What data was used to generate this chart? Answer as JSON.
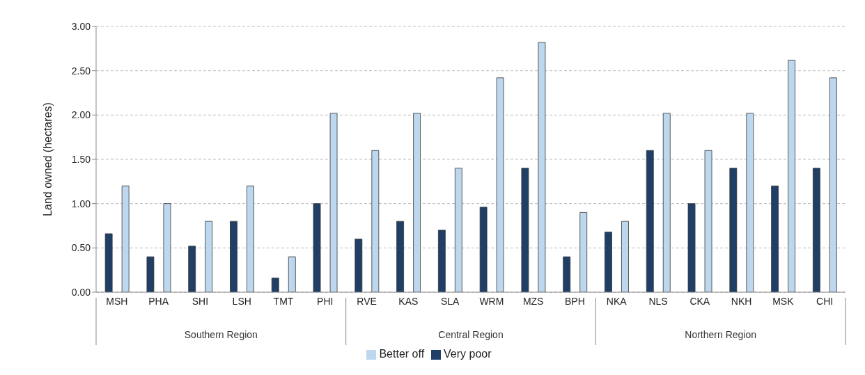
{
  "chart_data": {
    "type": "bar",
    "ylabel": "Land owned (hectares)",
    "categories": [
      "MSH",
      "PHA",
      "SHI",
      "LSH",
      "TMT",
      "PHI",
      "RVE",
      "KAS",
      "SLA",
      "WRM",
      "MZS",
      "BPH",
      "NKA",
      "NLS",
      "CKA",
      "NKH",
      "MSK",
      "CHI"
    ],
    "series": [
      {
        "name": "Very poor",
        "color": "#1f3f66",
        "values": [
          0.66,
          0.4,
          0.52,
          0.8,
          0.16,
          1.0,
          0.6,
          0.8,
          0.7,
          0.96,
          1.4,
          0.4,
          0.68,
          1.6,
          1.0,
          1.4,
          1.2,
          1.4
        ]
      },
      {
        "name": "Better off",
        "color": "#bdd7ee",
        "values": [
          1.2,
          1.0,
          0.8,
          1.2,
          0.4,
          2.02,
          1.6,
          2.02,
          1.4,
          2.42,
          2.82,
          0.9,
          0.8,
          2.02,
          1.6,
          2.02,
          2.62,
          2.42
        ]
      }
    ],
    "ylim": [
      0,
      3
    ],
    "yticks": [
      {
        "value": 0,
        "label": "0.00"
      },
      {
        "value": 0.5,
        "label": "0.50"
      },
      {
        "value": 1,
        "label": "1.00"
      },
      {
        "value": 1.5,
        "label": "1.50"
      },
      {
        "value": 2,
        "label": "2.00"
      },
      {
        "value": 2.5,
        "label": "2.50"
      },
      {
        "value": 3,
        "label": "3.00"
      }
    ],
    "annotations": [
      "Southern Region",
      "Central Region",
      "Northern Region"
    ],
    "grid": "y",
    "legend": "bottom"
  }
}
